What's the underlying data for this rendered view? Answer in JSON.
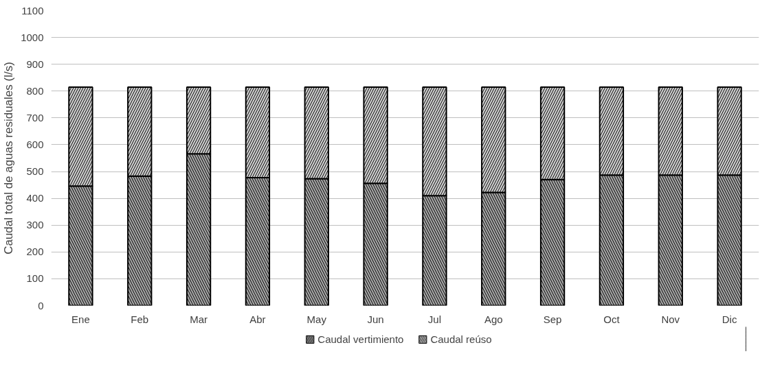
{
  "chart_data": {
    "type": "bar",
    "stacked": true,
    "ylabel": "Caudal total de aguas residuales (l/s)",
    "categories": [
      "Ene",
      "Feb",
      "Mar",
      "Abr",
      "May",
      "Jun",
      "Jul",
      "Ago",
      "Sep",
      "Oct",
      "Nov",
      "Dic"
    ],
    "series": [
      {
        "name": "Caudal vertimiento",
        "color": "#a6a6a6",
        "values": [
          446,
          483,
          566,
          477,
          473,
          456,
          410,
          422,
          470,
          487,
          487,
          487
        ]
      },
      {
        "name": "Caudal reúso",
        "color": "#d0d0d0",
        "values": [
          369,
          332,
          249,
          338,
          342,
          359,
          405,
          393,
          345,
          328,
          328,
          328
        ]
      }
    ],
    "ylim": [
      0,
      1100
    ],
    "yticks": [
      0,
      100,
      200,
      300,
      400,
      500,
      600,
      700,
      800,
      900,
      1000,
      1100
    ],
    "grid": "y",
    "legend": "bottom"
  }
}
